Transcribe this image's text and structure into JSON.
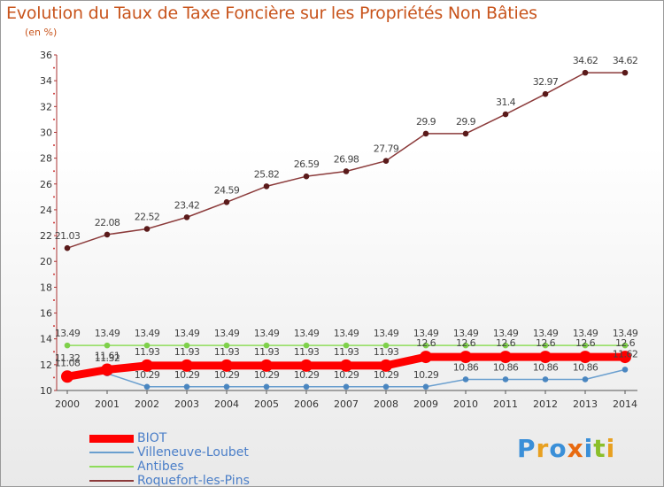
{
  "chart_data": {
    "type": "line",
    "title": "Evolution du Taux de Taxe Foncière sur les Propriétés Non Bâties",
    "ylabel": "(en %)",
    "xlabel": "",
    "ylim": [
      10,
      36
    ],
    "yticks": [
      10,
      12,
      14,
      16,
      18,
      20,
      22,
      24,
      26,
      28,
      30,
      32,
      34,
      36
    ],
    "categories": [
      "2000",
      "2001",
      "2002",
      "2003",
      "2004",
      "2005",
      "2006",
      "2007",
      "2008",
      "2009",
      "2010",
      "2011",
      "2012",
      "2013",
      "2014"
    ],
    "series": [
      {
        "name": "BIOT",
        "color": "#ff0000",
        "values": [
          11.08,
          11.61,
          11.93,
          11.93,
          11.93,
          11.93,
          11.93,
          11.93,
          11.93,
          12.6,
          12.6,
          12.6,
          12.6,
          12.6,
          12.6
        ],
        "labels": [
          "11.08",
          "11.61",
          "11.93",
          "11.93",
          "11.93",
          "11.93",
          "11.93",
          "11.93",
          "11.93",
          "12.6",
          "12.6",
          "12.6",
          "12.6",
          "12.6",
          "12.6"
        ]
      },
      {
        "name": "Villeneuve-Loubet",
        "color": "#6a9fcf",
        "values": [
          11.32,
          11.32,
          10.29,
          10.29,
          10.29,
          10.29,
          10.29,
          10.29,
          10.29,
          10.29,
          10.86,
          10.86,
          10.86,
          10.86,
          11.62
        ],
        "labels": [
          "11.32",
          "11.32",
          "10.29",
          "10.29",
          "10.29",
          "10.29",
          "10.29",
          "10.29",
          "10.29",
          "10.29",
          "10.86",
          "10.86",
          "10.86",
          "10.86",
          "11.62"
        ]
      },
      {
        "name": "Antibes",
        "color": "#8edc5a",
        "values": [
          13.49,
          13.49,
          13.49,
          13.49,
          13.49,
          13.49,
          13.49,
          13.49,
          13.49,
          13.49,
          13.49,
          13.49,
          13.49,
          13.49,
          13.49
        ],
        "labels": [
          "13.49",
          "13.49",
          "13.49",
          "13.49",
          "13.49",
          "13.49",
          "13.49",
          "13.49",
          "13.49",
          "13.49",
          "13.49",
          "13.49",
          "13.49",
          "13.49",
          "13.49"
        ]
      },
      {
        "name": "Roquefort-les-Pins",
        "color": "#8b3a3a",
        "values": [
          21.03,
          22.08,
          22.52,
          23.42,
          24.59,
          25.82,
          26.59,
          26.98,
          27.79,
          29.9,
          29.9,
          31.4,
          32.97,
          34.62,
          34.62
        ],
        "labels": [
          "21.03",
          "22.08",
          "22.52",
          "23.42",
          "24.59",
          "25.82",
          "26.59",
          "26.98",
          "27.79",
          "29.9",
          "29.9",
          "31.4",
          "32.97",
          "34.62",
          "34.62"
        ]
      }
    ]
  },
  "logo": {
    "letters": [
      "P",
      "r",
      "o",
      "x",
      "i",
      "t",
      "i"
    ],
    "colors": [
      "#3a8fd8",
      "#e8a020",
      "#3a8fd8",
      "#e86a10",
      "#3a8fd8",
      "#8bbf2a",
      "#e8a020"
    ]
  }
}
